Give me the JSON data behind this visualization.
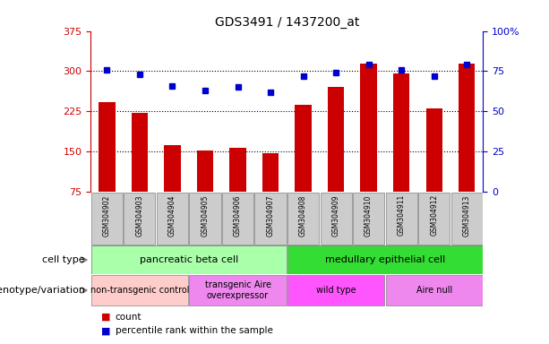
{
  "title": "GDS3491 / 1437200_at",
  "samples": [
    "GSM304902",
    "GSM304903",
    "GSM304904",
    "GSM304905",
    "GSM304906",
    "GSM304907",
    "GSM304908",
    "GSM304909",
    "GSM304910",
    "GSM304911",
    "GSM304912",
    "GSM304913"
  ],
  "counts": [
    242,
    222,
    163,
    152,
    157,
    148,
    237,
    270,
    315,
    295,
    230,
    315
  ],
  "percentiles": [
    76,
    73,
    66,
    63,
    65,
    62,
    72,
    74,
    79,
    76,
    72,
    79
  ],
  "ylim_left": [
    75,
    375
  ],
  "ylim_right": [
    0,
    100
  ],
  "yticks_left": [
    75,
    150,
    225,
    300,
    375
  ],
  "yticks_right": [
    0,
    25,
    50,
    75,
    100
  ],
  "ytick_labels_left": [
    "75",
    "150",
    "225",
    "300",
    "375"
  ],
  "ytick_labels_right": [
    "0",
    "25",
    "50",
    "75",
    "100%"
  ],
  "bar_color": "#cc0000",
  "dot_color": "#0000cc",
  "cell_type_groups": [
    {
      "label": "pancreatic beta cell",
      "start": 0,
      "end": 6,
      "color": "#aaffaa"
    },
    {
      "label": "medullary epithelial cell",
      "start": 6,
      "end": 12,
      "color": "#33dd33"
    }
  ],
  "genotype_groups": [
    {
      "label": "non-transgenic control",
      "start": 0,
      "end": 3,
      "color": "#ffcccc"
    },
    {
      "label": "transgenic Aire\noverexpressor",
      "start": 3,
      "end": 6,
      "color": "#ee88ee"
    },
    {
      "label": "wild type",
      "start": 6,
      "end": 9,
      "color": "#ff55ff"
    },
    {
      "label": "Aire null",
      "start": 9,
      "end": 12,
      "color": "#ee88ee"
    }
  ],
  "left_axis_color": "#cc0000",
  "right_axis_color": "#0000cc",
  "base_value": 75,
  "sample_box_color": "#cccccc"
}
